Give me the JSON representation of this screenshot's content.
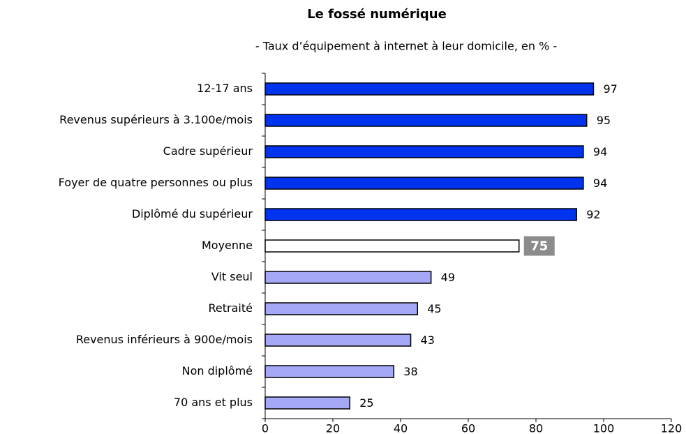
{
  "chart_data": {
    "type": "hbar",
    "title": "Le fossé numérique",
    "subtitle": "- Taux d’équipement à internet à leur domicile, en % -",
    "categories": [
      "12-17 ans",
      "Revenus supérieurs à 3.100e/mois",
      "Cadre supérieur",
      "Foyer de quatre personnes ou plus",
      "Diplômé du supérieur",
      "Moyenne",
      "Vit seul",
      "Retraité",
      "Revenus inférieurs à 900e/mois",
      "Non diplômé",
      "70 ans et plus"
    ],
    "values": [
      97,
      95,
      94,
      94,
      92,
      75,
      49,
      45,
      43,
      38,
      25
    ],
    "colors": [
      "#0033ee",
      "#0033ee",
      "#0033ee",
      "#0033ee",
      "#0033ee",
      "#ffffff",
      "#a4a8f6",
      "#a4a8f6",
      "#a4a8f6",
      "#a4a8f6",
      "#a4a8f6"
    ],
    "highlight": "Moyenne",
    "xlim": [
      0,
      120
    ],
    "xticks": [
      0,
      20,
      40,
      60,
      80,
      100,
      120
    ]
  }
}
